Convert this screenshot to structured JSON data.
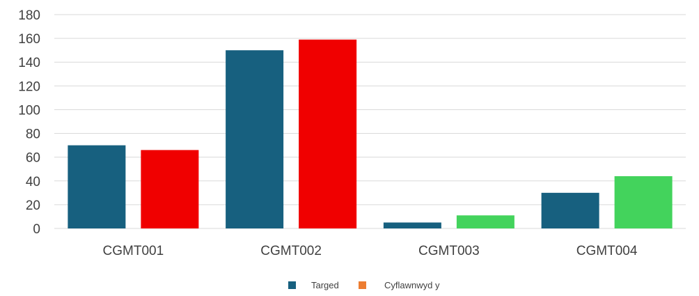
{
  "chart_data": {
    "type": "bar",
    "categories": [
      "CGMT001",
      "CGMT002",
      "CGMT003",
      "CGMT004"
    ],
    "series": [
      {
        "name": "Targed",
        "values": [
          70,
          150,
          5,
          30
        ],
        "color": "#17607f"
      },
      {
        "name": "Cyflawnwyd y",
        "values": [
          66,
          159,
          11,
          44
        ],
        "color": "#ed7d31",
        "point_colors": [
          "#f00000",
          "#f00000",
          "#43d35c",
          "#43d35c"
        ]
      }
    ],
    "y_ticks": [
      "0",
      "20",
      "40",
      "60",
      "80",
      "100",
      "120",
      "140",
      "160",
      "180"
    ],
    "ylim": [
      0,
      180
    ],
    "grid": true,
    "legend_position": "bottom"
  }
}
